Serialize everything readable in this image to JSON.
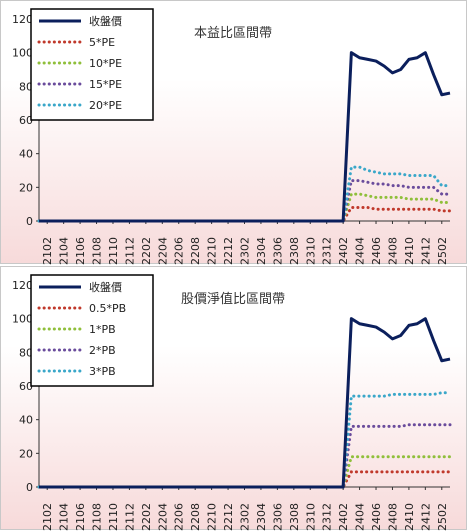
{
  "chart_data": [
    {
      "type": "line",
      "title": "本益比區間帶",
      "xlabel": "",
      "ylabel": "",
      "ylim": [
        0,
        120
      ],
      "yticks": [
        0,
        20,
        40,
        60,
        80,
        100,
        120
      ],
      "categories": [
        "2101",
        "2102",
        "2103",
        "2104",
        "2105",
        "2106",
        "2107",
        "2108",
        "2109",
        "2110",
        "2111",
        "2112",
        "2201",
        "2202",
        "2203",
        "2204",
        "2205",
        "2206",
        "2207",
        "2208",
        "2209",
        "2210",
        "2211",
        "2212",
        "2301",
        "2302",
        "2303",
        "2304",
        "2305",
        "2306",
        "2307",
        "2308",
        "2309",
        "2310",
        "2311",
        "2312",
        "2401",
        "2402",
        "2403",
        "2404",
        "2405",
        "2406",
        "2407",
        "2408",
        "2409",
        "2410",
        "2411",
        "2412",
        "2501",
        "2502",
        "2503"
      ],
      "tick_labels": [
        "2102",
        "2104",
        "2106",
        "2108",
        "2110",
        "2112",
        "2202",
        "2204",
        "2206",
        "2208",
        "2210",
        "2212",
        "2302",
        "2304",
        "2306",
        "2308",
        "2310",
        "2312",
        "2402",
        "2404",
        "2406",
        "2408",
        "2410",
        "2412",
        "2502"
      ],
      "legend_placement": "top-left",
      "series": [
        {
          "name": "收盤價",
          "color": "#0b1f5c",
          "style": "solid",
          "values": [
            0,
            0,
            0,
            0,
            0,
            0,
            0,
            0,
            0,
            0,
            0,
            0,
            0,
            0,
            0,
            0,
            0,
            0,
            0,
            0,
            0,
            0,
            0,
            0,
            0,
            0,
            0,
            0,
            0,
            0,
            0,
            0,
            0,
            0,
            0,
            0,
            0,
            0,
            100,
            97,
            96,
            95,
            92,
            88,
            90,
            96,
            97,
            100,
            87,
            75,
            76
          ]
        },
        {
          "name": "5*PE",
          "color": "#c0392b",
          "style": "dotted",
          "values": [
            0,
            0,
            0,
            0,
            0,
            0,
            0,
            0,
            0,
            0,
            0,
            0,
            0,
            0,
            0,
            0,
            0,
            0,
            0,
            0,
            0,
            0,
            0,
            0,
            0,
            0,
            0,
            0,
            0,
            0,
            0,
            0,
            0,
            0,
            0,
            0,
            0,
            0,
            8,
            8,
            8,
            7,
            7,
            7,
            7,
            7,
            7,
            7,
            7,
            6,
            6
          ]
        },
        {
          "name": "10*PE",
          "color": "#8fbf3a",
          "style": "dotted",
          "values": [
            0,
            0,
            0,
            0,
            0,
            0,
            0,
            0,
            0,
            0,
            0,
            0,
            0,
            0,
            0,
            0,
            0,
            0,
            0,
            0,
            0,
            0,
            0,
            0,
            0,
            0,
            0,
            0,
            0,
            0,
            0,
            0,
            0,
            0,
            0,
            0,
            0,
            0,
            16,
            16,
            15,
            14,
            14,
            14,
            14,
            13,
            13,
            13,
            13,
            11,
            11
          ]
        },
        {
          "name": "15*PE",
          "color": "#6a4c9c",
          "style": "dotted",
          "values": [
            0,
            0,
            0,
            0,
            0,
            0,
            0,
            0,
            0,
            0,
            0,
            0,
            0,
            0,
            0,
            0,
            0,
            0,
            0,
            0,
            0,
            0,
            0,
            0,
            0,
            0,
            0,
            0,
            0,
            0,
            0,
            0,
            0,
            0,
            0,
            0,
            0,
            0,
            24,
            24,
            23,
            22,
            22,
            21,
            21,
            20,
            20,
            20,
            20,
            16,
            16
          ]
        },
        {
          "name": "20*PE",
          "color": "#3aa7c9",
          "style": "dotted",
          "values": [
            0,
            0,
            0,
            0,
            0,
            0,
            0,
            0,
            0,
            0,
            0,
            0,
            0,
            0,
            0,
            0,
            0,
            0,
            0,
            0,
            0,
            0,
            0,
            0,
            0,
            0,
            0,
            0,
            0,
            0,
            0,
            0,
            0,
            0,
            0,
            0,
            0,
            0,
            32,
            32,
            30,
            29,
            28,
            28,
            28,
            27,
            27,
            27,
            27,
            21,
            21
          ]
        }
      ]
    },
    {
      "type": "line",
      "title": "股價淨值比區間帶",
      "xlabel": "",
      "ylabel": "",
      "ylim": [
        0,
        120
      ],
      "yticks": [
        0,
        20,
        40,
        60,
        80,
        100,
        120
      ],
      "categories": [
        "2101",
        "2102",
        "2103",
        "2104",
        "2105",
        "2106",
        "2107",
        "2108",
        "2109",
        "2110",
        "2111",
        "2112",
        "2201",
        "2202",
        "2203",
        "2204",
        "2205",
        "2206",
        "2207",
        "2208",
        "2209",
        "2210",
        "2211",
        "2212",
        "2301",
        "2302",
        "2303",
        "2304",
        "2305",
        "2306",
        "2307",
        "2308",
        "2309",
        "2310",
        "2311",
        "2312",
        "2401",
        "2402",
        "2403",
        "2404",
        "2405",
        "2406",
        "2407",
        "2408",
        "2409",
        "2410",
        "2411",
        "2412",
        "2501",
        "2502",
        "2503"
      ],
      "tick_labels": [
        "2102",
        "2104",
        "2106",
        "2108",
        "2110",
        "2112",
        "2202",
        "2204",
        "2206",
        "2208",
        "2210",
        "2212",
        "2302",
        "2304",
        "2306",
        "2308",
        "2310",
        "2312",
        "2402",
        "2404",
        "2406",
        "2408",
        "2410",
        "2412",
        "2502"
      ],
      "legend_placement": "top-left",
      "series": [
        {
          "name": "收盤價",
          "color": "#0b1f5c",
          "style": "solid",
          "values": [
            0,
            0,
            0,
            0,
            0,
            0,
            0,
            0,
            0,
            0,
            0,
            0,
            0,
            0,
            0,
            0,
            0,
            0,
            0,
            0,
            0,
            0,
            0,
            0,
            0,
            0,
            0,
            0,
            0,
            0,
            0,
            0,
            0,
            0,
            0,
            0,
            0,
            0,
            100,
            97,
            96,
            95,
            92,
            88,
            90,
            96,
            97,
            100,
            87,
            75,
            76
          ]
        },
        {
          "name": "0.5*PB",
          "color": "#c0392b",
          "style": "dotted",
          "values": [
            0,
            0,
            0,
            0,
            0,
            0,
            0,
            0,
            0,
            0,
            0,
            0,
            0,
            0,
            0,
            0,
            0,
            0,
            0,
            0,
            0,
            0,
            0,
            0,
            0,
            0,
            0,
            0,
            0,
            0,
            0,
            0,
            0,
            0,
            0,
            0,
            0,
            0,
            9,
            9,
            9,
            9,
            9,
            9,
            9,
            9,
            9,
            9,
            9,
            9,
            9
          ]
        },
        {
          "name": "1*PB",
          "color": "#8fbf3a",
          "style": "dotted",
          "values": [
            0,
            0,
            0,
            0,
            0,
            0,
            0,
            0,
            0,
            0,
            0,
            0,
            0,
            0,
            0,
            0,
            0,
            0,
            0,
            0,
            0,
            0,
            0,
            0,
            0,
            0,
            0,
            0,
            0,
            0,
            0,
            0,
            0,
            0,
            0,
            0,
            0,
            0,
            18,
            18,
            18,
            18,
            18,
            18,
            18,
            18,
            18,
            18,
            18,
            18,
            18
          ]
        },
        {
          "name": "2*PB",
          "color": "#6a4c9c",
          "style": "dotted",
          "values": [
            0,
            0,
            0,
            0,
            0,
            0,
            0,
            0,
            0,
            0,
            0,
            0,
            0,
            0,
            0,
            0,
            0,
            0,
            0,
            0,
            0,
            0,
            0,
            0,
            0,
            0,
            0,
            0,
            0,
            0,
            0,
            0,
            0,
            0,
            0,
            0,
            0,
            0,
            36,
            36,
            36,
            36,
            36,
            36,
            36,
            37,
            37,
            37,
            37,
            37,
            37
          ]
        },
        {
          "name": "3*PB",
          "color": "#3aa7c9",
          "style": "dotted",
          "values": [
            0,
            0,
            0,
            0,
            0,
            0,
            0,
            0,
            0,
            0,
            0,
            0,
            0,
            0,
            0,
            0,
            0,
            0,
            0,
            0,
            0,
            0,
            0,
            0,
            0,
            0,
            0,
            0,
            0,
            0,
            0,
            0,
            0,
            0,
            0,
            0,
            0,
            0,
            54,
            54,
            54,
            54,
            54,
            55,
            55,
            55,
            55,
            55,
            55,
            56,
            56
          ]
        }
      ]
    }
  ]
}
